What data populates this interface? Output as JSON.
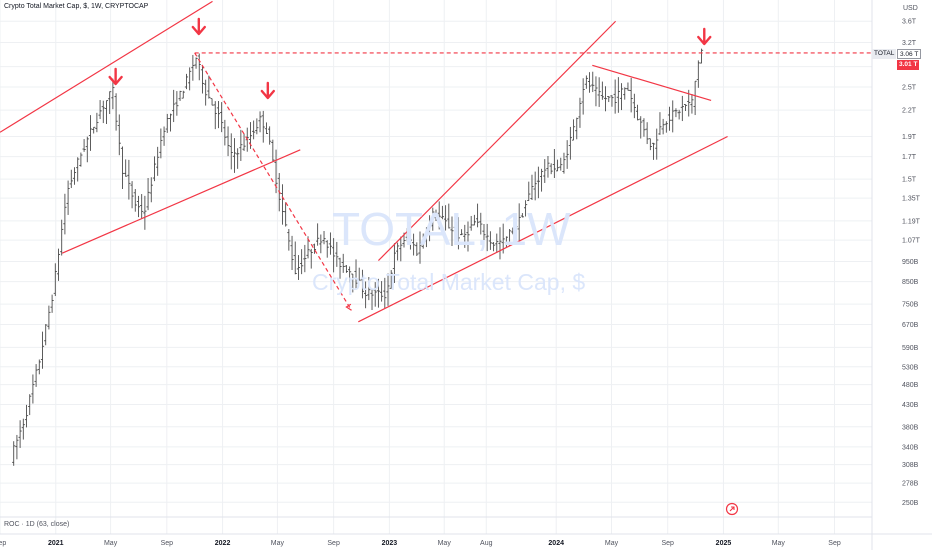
{
  "header": {
    "title": "Crypto Total Market Cap, $, 1W, CRYPTOCAP",
    "currency": "USD"
  },
  "indicator": {
    "label": "ROC · 1D (63, close)"
  },
  "watermark": {
    "symbol": "TOTAL, 1W",
    "name": "Crypto Total Market Cap, $"
  },
  "price_tags": {
    "symbol": "TOTAL",
    "last": "3.06 T",
    "level": "3.01 T"
  },
  "colors": {
    "candles": "#4a4a4a",
    "annotation": "#f23645",
    "grid": "#eef0f3",
    "axis_text": "#50535e"
  },
  "chart_data": {
    "type": "ohlc",
    "title": "Crypto Total Market Cap, $, 1W, CRYPTOCAP",
    "y_scale": "log",
    "ylim": [
      233,
      4050
    ],
    "y_ticks": [
      {
        "v": 3600,
        "label": "3.6T"
      },
      {
        "v": 3200,
        "label": "3.2T"
      },
      {
        "v": 2800,
        "label": "2.8T"
      },
      {
        "v": 2500,
        "label": "2.5T"
      },
      {
        "v": 2200,
        "label": "2.2T"
      },
      {
        "v": 1900,
        "label": "1.9T"
      },
      {
        "v": 1700,
        "label": "1.7T"
      },
      {
        "v": 1500,
        "label": "1.5T"
      },
      {
        "v": 1350,
        "label": "1.35T"
      },
      {
        "v": 1190,
        "label": "1.19T"
      },
      {
        "v": 1070,
        "label": "1.07T"
      },
      {
        "v": 950,
        "label": "950B"
      },
      {
        "v": 850,
        "label": "850B"
      },
      {
        "v": 750,
        "label": "750B"
      },
      {
        "v": 670,
        "label": "670B"
      },
      {
        "v": 590,
        "label": "590B"
      },
      {
        "v": 530,
        "label": "530B"
      },
      {
        "v": 480,
        "label": "480B"
      },
      {
        "v": 430,
        "label": "430B"
      },
      {
        "v": 380,
        "label": "380B"
      },
      {
        "v": 340,
        "label": "340B"
      },
      {
        "v": 308,
        "label": "308B"
      },
      {
        "v": 278,
        "label": "278B"
      },
      {
        "v": 250,
        "label": "250B"
      }
    ],
    "x_range": [
      "2020-09-01",
      "2025-11-22"
    ],
    "x_ticks": [
      {
        "date": "2020-09-01",
        "label": "Sep",
        "bold": false
      },
      {
        "date": "2021-01-01",
        "label": "2021",
        "bold": true
      },
      {
        "date": "2021-05-01",
        "label": "May",
        "bold": false
      },
      {
        "date": "2021-09-01",
        "label": "Sep",
        "bold": false
      },
      {
        "date": "2022-01-01",
        "label": "2022",
        "bold": true
      },
      {
        "date": "2022-05-01",
        "label": "May",
        "bold": false
      },
      {
        "date": "2022-09-01",
        "label": "Sep",
        "bold": false
      },
      {
        "date": "2023-01-01",
        "label": "2023",
        "bold": true
      },
      {
        "date": "2023-05-01",
        "label": "May",
        "bold": false
      },
      {
        "date": "2023-08-01",
        "label": "Aug",
        "bold": false
      },
      {
        "date": "2024-01-01",
        "label": "2024",
        "bold": true
      },
      {
        "date": "2024-05-01",
        "label": "May",
        "bold": false
      },
      {
        "date": "2024-09-01",
        "label": "Sep",
        "bold": false
      },
      {
        "date": "2025-01-01",
        "label": "2025",
        "bold": true
      },
      {
        "date": "2025-05-01",
        "label": "May",
        "bold": false
      },
      {
        "date": "2025-09-01",
        "label": "Sep",
        "bold": false
      }
    ],
    "price_path": [
      [
        "2020-10-01",
        320
      ],
      [
        "2020-11-01",
        400
      ],
      [
        "2020-12-01",
        540
      ],
      [
        "2021-01-01",
        800
      ],
      [
        "2021-02-01",
        1400
      ],
      [
        "2021-03-01",
        1700
      ],
      [
        "2021-04-15",
        2200
      ],
      [
        "2021-05-12",
        2450
      ],
      [
        "2021-06-01",
        1600
      ],
      [
        "2021-07-01",
        1300
      ],
      [
        "2021-07-20",
        1250
      ],
      [
        "2021-09-01",
        2000
      ],
      [
        "2021-10-15",
        2500
      ],
      [
        "2021-11-10",
        2950
      ],
      [
        "2021-12-01",
        2450
      ],
      [
        "2022-01-01",
        2100
      ],
      [
        "2022-01-25",
        1700
      ],
      [
        "2022-03-01",
        1850
      ],
      [
        "2022-04-01",
        2100
      ],
      [
        "2022-04-15",
        1950
      ],
      [
        "2022-05-15",
        1300
      ],
      [
        "2022-06-15",
        900
      ],
      [
        "2022-07-15",
        1000
      ],
      [
        "2022-08-15",
        1100
      ],
      [
        "2022-09-15",
        950
      ],
      [
        "2022-10-15",
        900
      ],
      [
        "2022-11-15",
        800
      ],
      [
        "2022-12-31",
        790
      ],
      [
        "2023-01-20",
        1000
      ],
      [
        "2023-02-15",
        1100
      ],
      [
        "2023-03-10",
        1000
      ],
      [
        "2023-04-15",
        1250
      ],
      [
        "2023-06-15",
        1080
      ],
      [
        "2023-07-15",
        1190
      ],
      [
        "2023-08-20",
        1050
      ],
      [
        "2023-09-15",
        1060
      ],
      [
        "2023-10-20",
        1200
      ],
      [
        "2023-11-15",
        1430
      ],
      [
        "2023-12-15",
        1600
      ],
      [
        "2024-01-20",
        1600
      ],
      [
        "2024-02-15",
        2000
      ],
      [
        "2024-03-10",
        2600
      ],
      [
        "2024-04-15",
        2350
      ],
      [
        "2024-05-15",
        2350
      ],
      [
        "2024-06-10",
        2520
      ],
      [
        "2024-07-05",
        2100
      ],
      [
        "2024-08-05",
        1780
      ],
      [
        "2024-08-25",
        2050
      ],
      [
        "2024-09-20",
        2150
      ],
      [
        "2024-10-15",
        2250
      ],
      [
        "2024-10-31",
        2300
      ],
      [
        "2024-11-10",
        2750
      ],
      [
        "2024-11-18",
        3060
      ]
    ],
    "trendlines": [
      {
        "from": [
          "2020-09-01",
          1945
        ],
        "to": [
          "2021-12-10",
          4020
        ],
        "style": "solid"
      },
      {
        "from": [
          "2021-01-15",
          995
        ],
        "to": [
          "2022-06-20",
          1765
        ],
        "style": "solid"
      },
      {
        "from": [
          "2022-10-25",
          680
        ],
        "to": [
          "2025-01-10",
          1900
        ],
        "style": "solid"
      },
      {
        "from": [
          "2022-12-08",
          955
        ],
        "to": [
          "2024-05-10",
          3600
        ],
        "style": "solid"
      },
      {
        "from": [
          "2024-03-20",
          2820
        ],
        "to": [
          "2024-12-05",
          2320
        ],
        "style": "solid"
      },
      {
        "from": [
          "2021-11-01",
          3020
        ],
        "to": [
          "2025-11-22",
          3020
        ],
        "style": "dashed"
      },
      {
        "from": [
          "2021-11-01",
          3020
        ],
        "to": [
          "2022-10-10",
          725
        ],
        "style": "dashed",
        "arrow": true
      }
    ],
    "arrows": [
      "2021-05-12",
      "2021-11-10",
      "2022-04-10",
      "2024-11-20"
    ]
  }
}
